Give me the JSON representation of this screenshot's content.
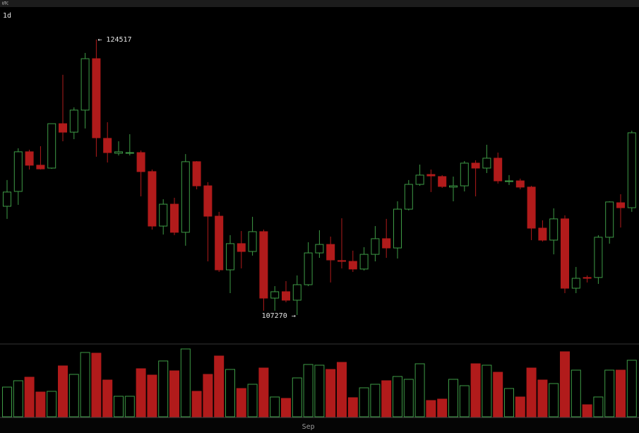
{
  "chart_data": {
    "type": "candlestick",
    "interval": "1d",
    "timezone": "UTC",
    "high_annotation": "← 124517",
    "low_annotation": "107270 →",
    "up_color": "#3e9b46",
    "down_color": "#b11b1b",
    "categories": [
      null,
      null,
      null,
      null,
      null,
      null,
      null,
      null,
      null,
      null,
      null,
      null,
      null,
      null,
      null,
      null,
      null,
      null,
      null,
      null,
      null,
      null,
      null,
      null,
      null,
      null,
      null,
      "Sep",
      null,
      null,
      null,
      null,
      null,
      null,
      null,
      null,
      null,
      null,
      null,
      null,
      null,
      null,
      null,
      null,
      null,
      null,
      null,
      null,
      null,
      null,
      null,
      null,
      null,
      null,
      null,
      null,
      null
    ],
    "open": [
      114080,
      115010,
      117490,
      116650,
      116470,
      119250,
      118720,
      120100,
      123320,
      118330,
      117400,
      117400,
      117440,
      116250,
      112840,
      114210,
      112450,
      116870,
      115360,
      113460,
      110100,
      111740,
      111250,
      112490,
      108330,
      108730,
      108200,
      109170,
      111160,
      111690,
      110680,
      110630,
      110150,
      111070,
      112050,
      111470,
      113900,
      115450,
      116070,
      115940,
      115280,
      115360,
      116780,
      116470,
      117090,
      115630,
      115670,
      115280,
      112710,
      111960,
      113290,
      108950,
      109620,
      109620,
      112140,
      114300,
      113990
    ],
    "high": [
      115720,
      117710,
      117620,
      117840,
      119250,
      122310,
      120270,
      123680,
      124517,
      119340,
      118150,
      118590,
      117570,
      116380,
      114520,
      114610,
      117350,
      116910,
      115590,
      113730,
      112270,
      112530,
      113420,
      112620,
      109080,
      109390,
      109750,
      111830,
      112580,
      112180,
      113330,
      111300,
      111520,
      112840,
      113290,
      114390,
      115720,
      116690,
      116380,
      116030,
      115940,
      116910,
      116960,
      117930,
      117440,
      116030,
      115810,
      115360,
      113200,
      113950,
      113510,
      110280,
      109750,
      112270,
      114390,
      114830,
      118810
    ],
    "low": [
      113290,
      114170,
      116380,
      116380,
      116420,
      118150,
      118280,
      118950,
      117180,
      116820,
      117260,
      117260,
      114700,
      112620,
      112310,
      112270,
      111610,
      115140,
      110630,
      109970,
      108640,
      110190,
      110990,
      107540,
      107540,
      108070,
      107270,
      109080,
      110850,
      109310,
      110190,
      109970,
      110060,
      110630,
      110850,
      110810,
      113820,
      115360,
      114970,
      115230,
      114390,
      115010,
      114700,
      116160,
      115500,
      115410,
      115140,
      111960,
      111870,
      111070,
      108640,
      108640,
      109310,
      109220,
      111740,
      112750,
      113730
    ],
    "close": [
      114970,
      117490,
      116650,
      116420,
      119250,
      118720,
      120100,
      123320,
      118370,
      117440,
      117490,
      117440,
      116250,
      112840,
      114210,
      112450,
      116870,
      115360,
      113460,
      110100,
      111740,
      111250,
      112490,
      108330,
      108730,
      108200,
      109170,
      111160,
      111690,
      110720,
      110630,
      110150,
      111070,
      112050,
      111470,
      113900,
      115450,
      116030,
      115980,
      115320,
      115360,
      116780,
      116470,
      117090,
      115670,
      115670,
      115280,
      112710,
      111960,
      113290,
      108950,
      109570,
      109570,
      112140,
      114350,
      113990,
      118680
    ],
    "volume": [
      42,
      51,
      56,
      35,
      36,
      72,
      60,
      91,
      90,
      52,
      29,
      29,
      68,
      59,
      79,
      65,
      96,
      36,
      60,
      86,
      67,
      40,
      46,
      69,
      28,
      26,
      55,
      74,
      73,
      67,
      77,
      27,
      41,
      46,
      51,
      57,
      53,
      75,
      23,
      25,
      53,
      44,
      75,
      73,
      63,
      40,
      28,
      69,
      52,
      47,
      92,
      66,
      17,
      28,
      66,
      66,
      80
    ]
  }
}
